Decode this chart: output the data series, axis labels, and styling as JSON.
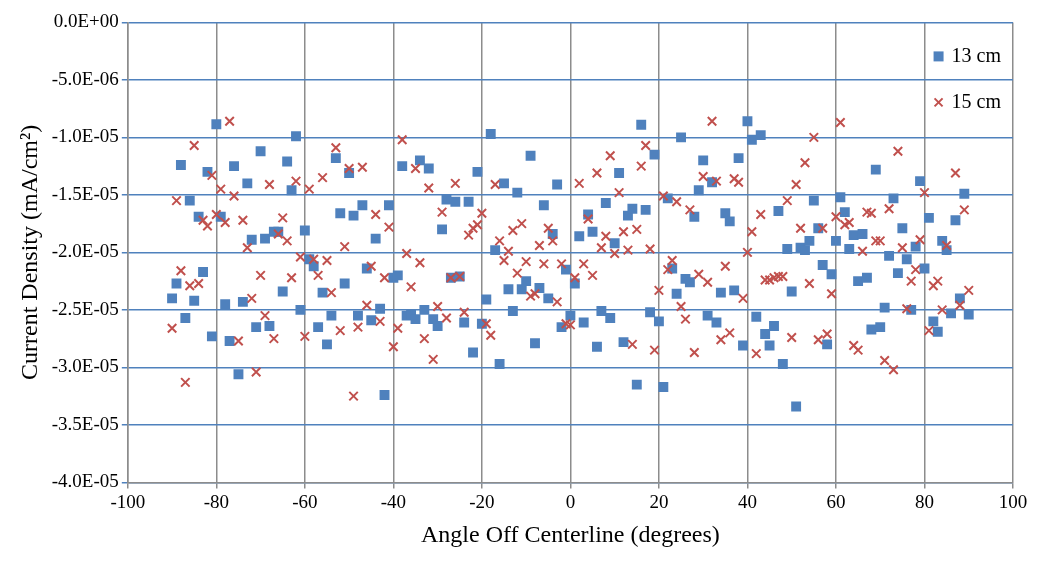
{
  "chart_data": {
    "type": "scatter",
    "xlabel": "Angle Off Centerline (degrees)",
    "ylabel": "Current Density (mA/cm²)",
    "xlim": [
      -100,
      100
    ],
    "xticks": [
      -100,
      -80,
      -60,
      -40,
      -20,
      0,
      20,
      40,
      60,
      80,
      100
    ],
    "ylim": [
      -4e-05,
      0
    ],
    "yticks": [
      {
        "value": 0,
        "label": "0.0E+00"
      },
      {
        "value": -5e-06,
        "label": "-5.0E-06"
      },
      {
        "value": -1e-05,
        "label": "-1.0E-05"
      },
      {
        "value": -1.5e-05,
        "label": "-1.5E-05"
      },
      {
        "value": -2e-05,
        "label": "-2.0E-05"
      },
      {
        "value": -2.5e-05,
        "label": "-2.5E-05"
      },
      {
        "value": -3e-05,
        "label": "-3.0E-05"
      },
      {
        "value": -3.5e-05,
        "label": "-3.5E-05"
      },
      {
        "value": -4e-05,
        "label": "-4.0E-05"
      }
    ],
    "grid": true,
    "legend": "top right",
    "x": [
      -90,
      -89,
      -88,
      -87,
      -86,
      -85,
      -84,
      -83,
      -82,
      -81,
      -80,
      -79,
      -78,
      -77,
      -76,
      -75,
      -74,
      -73,
      -72,
      -71,
      -70,
      -69,
      -68,
      -67,
      -66,
      -65,
      -64,
      -63,
      -62,
      -61,
      -60,
      -59,
      -58,
      -57,
      -56,
      -55,
      -54,
      -53,
      -52,
      -51,
      -50,
      -49,
      -48,
      -47,
      -46,
      -45,
      -44,
      -43,
      -42,
      -41,
      -40,
      -39,
      -38,
      -37,
      -36,
      -35,
      -34,
      -33,
      -32,
      -31,
      -30,
      -29,
      -28,
      -27,
      -26,
      -25,
      -24,
      -23,
      -22,
      -21,
      -20,
      -19,
      -18,
      -17,
      -16,
      -15,
      -14,
      -13,
      -12,
      -11,
      -10,
      -9,
      -8,
      -7,
      -6,
      -5,
      -4,
      -3,
      -2,
      -1,
      0,
      1,
      2,
      3,
      4,
      5,
      6,
      7,
      8,
      9,
      10,
      11,
      12,
      13,
      14,
      15,
      16,
      17,
      18,
      19,
      20,
      21,
      22,
      23,
      24,
      25,
      26,
      27,
      28,
      29,
      30,
      31,
      32,
      33,
      34,
      35,
      36,
      37,
      38,
      39,
      40,
      41,
      42,
      43,
      44,
      45,
      46,
      47,
      48,
      49,
      50,
      51,
      52,
      53,
      54,
      55,
      56,
      57,
      58,
      59,
      60,
      61,
      62,
      63,
      64,
      65,
      66,
      67,
      68,
      69,
      70,
      71,
      72,
      73,
      74,
      75,
      76,
      77,
      78,
      79,
      80,
      81,
      82,
      83,
      84,
      85,
      86,
      87,
      88,
      89,
      90
    ],
    "series": [
      {
        "name": "13 cm",
        "color": "#4f81bd",
        "marker": "square",
        "values": [
          -2.4e-05,
          -2.27e-05,
          -1.24e-05,
          -2.57e-05,
          -1.55e-05,
          -2.42e-05,
          -1.69e-05,
          -2.17e-05,
          -1.3e-05,
          -2.73e-05,
          -8.85e-06,
          -1.69e-05,
          -2.45e-05,
          -2.77e-05,
          -1.25e-05,
          -3.06e-05,
          -2.43e-05,
          -1.4e-05,
          -1.89e-05,
          -2.65e-05,
          -1.12e-05,
          -1.88e-05,
          -2.64e-05,
          -1.82e-05,
          -1.82e-05,
          -2.34e-05,
          -1.21e-05,
          -1.46e-05,
          -9.9e-06,
          -2.5e-05,
          -1.81e-05,
          -2.06e-05,
          -2.12e-05,
          -2.65e-05,
          -2.35e-05,
          -2.8e-05,
          -2.55e-05,
          -1.18e-05,
          -1.66e-05,
          -2.27e-05,
          -1.31e-05,
          -1.68e-05,
          -2.55e-05,
          -1.59e-05,
          -2.14e-05,
          -2.59e-05,
          -1.88e-05,
          -2.49e-05,
          -3.24e-05,
          -1.59e-05,
          -2.22e-05,
          -2.2e-05,
          -1.25e-05,
          -2.55e-05,
          -2.54e-05,
          -2.58e-05,
          -1.2e-05,
          -2.5e-05,
          -1.27e-05,
          -2.58e-05,
          -2.64e-05,
          -1.8e-05,
          -1.54e-05,
          -2.22e-05,
          -1.56e-05,
          -2.21e-05,
          -2.61e-05,
          -1.56e-05,
          -2.87e-05,
          -1.3e-05,
          -2.62e-05,
          -2.41e-05,
          -9.7e-06,
          -1.98e-05,
          -2.97e-05,
          -1.4e-05,
          -2.32e-05,
          -2.51e-05,
          -1.48e-05,
          -2.32e-05,
          -2.25e-05,
          -1.16e-05,
          -2.79e-05,
          -2.31e-05,
          -1.59e-05,
          -2.4e-05,
          -1.84e-05,
          -1.41e-05,
          -2.65e-05,
          -2.15e-05,
          -2.55e-05,
          -2.27e-05,
          -1.86e-05,
          -2.61e-05,
          -1.67e-05,
          -1.82e-05,
          -2.82e-05,
          -2.51e-05,
          -1.57e-05,
          -2.57e-05,
          -1.92e-05,
          -1.31e-05,
          -2.78e-05,
          -1.68e-05,
          -1.62e-05,
          -3.15e-05,
          -8.9e-06,
          -1.63e-05,
          -2.52e-05,
          -1.15e-05,
          -2.6e-05,
          -3.17e-05,
          -1.53e-05,
          -2.14e-05,
          -2.36e-05,
          -1e-05,
          -2.23e-05,
          -2.26e-05,
          -1.69e-05,
          -1.46e-05,
          -1.2e-05,
          -2.55e-05,
          -1.39e-05,
          -2.61e-05,
          -2.35e-05,
          -1.66e-05,
          -1.73e-05,
          -2.33e-05,
          -1.18e-05,
          -2.81e-05,
          -8.6e-06,
          -1.02e-05,
          -2.56e-05,
          -9.8e-06,
          -2.71e-05,
          -2.81e-05,
          -2.64e-05,
          -1.64e-05,
          -2.97e-05,
          -1.97e-05,
          -2.34e-05,
          -3.34e-05,
          -1.96e-05,
          -1.98e-05,
          -1.9e-05,
          -1.55e-05,
          -1.79e-05,
          -2.11e-05,
          -2.8e-05,
          -2.19e-05,
          -1.9e-05,
          -1.52e-05,
          -1.65e-05,
          -1.97e-05,
          -1.85e-05,
          -2.25e-05,
          -1.84e-05,
          -2.22e-05,
          -2.67e-05,
          -1.28e-05,
          -2.65e-05,
          -2.48e-05,
          -2.03e-05,
          -1.53e-05,
          -2.18e-05,
          -1.79e-05,
          -2.06e-05,
          -2.5e-05,
          -1.95e-05,
          -1.38e-05,
          -2.14e-05,
          -1.7e-05,
          -2.6e-05,
          -2.69e-05,
          -1.9e-05,
          -1.98e-05,
          -2.53e-05,
          -1.72e-05,
          -2.4e-05,
          -1.49e-05,
          -2.54e-05
        ]
      },
      {
        "name": "15 cm",
        "color": "#c0504d",
        "marker": "cross",
        "values": [
          -2.66e-05,
          -1.55e-05,
          -2.16e-05,
          -3.13e-05,
          -2.29e-05,
          -1.07e-05,
          -2.27e-05,
          -1.72e-05,
          -1.77e-05,
          -1.33e-05,
          -1.67e-05,
          -1.45e-05,
          -1.74e-05,
          -8.6e-06,
          -1.51e-05,
          -2.77e-05,
          -1.72e-05,
          -1.96e-05,
          -2.4e-05,
          -3.04e-05,
          -2.2e-05,
          -2.55e-05,
          -1.41e-05,
          -2.75e-05,
          -1.84e-05,
          -1.7e-05,
          -1.9e-05,
          -2.22e-05,
          -1.38e-05,
          -2.04e-05,
          -2.73e-05,
          -1.45e-05,
          -2.06e-05,
          -2.2e-05,
          -1.35e-05,
          -2.07e-05,
          -2.35e-05,
          -1.09e-05,
          -2.68e-05,
          -1.95e-05,
          -1.27e-05,
          -3.25e-05,
          -2.65e-05,
          -1.26e-05,
          -2.46e-05,
          -2.12e-05,
          -1.67e-05,
          -2.6e-05,
          -2.22e-05,
          -1.78e-05,
          -2.82e-05,
          -2.66e-05,
          -1.02e-05,
          -2.01e-05,
          -2.3e-05,
          -1.27e-05,
          -2.09e-05,
          -2.75e-05,
          -1.44e-05,
          -2.93e-05,
          -2.47e-05,
          -1.65e-05,
          -2.57e-05,
          -2.22e-05,
          -1.4e-05,
          -2.21e-05,
          -2.52e-05,
          -1.85e-05,
          -1.79e-05,
          -1.76e-05,
          -1.66e-05,
          -2.62e-05,
          -2.72e-05,
          -1.41e-05,
          -1.9e-05,
          -2.07e-05,
          -1.99e-05,
          -1.81e-05,
          -2.18e-05,
          -1.75e-05,
          -2.08e-05,
          -2.38e-05,
          -2.36e-05,
          -1.94e-05,
          -2.1e-05,
          -1.79e-05,
          -1.9e-05,
          -2.43e-05,
          -2.1e-05,
          -2.62e-05,
          -2.63e-05,
          -2.22e-05,
          -1.4e-05,
          -2.1e-05,
          -1.71e-05,
          -2.2e-05,
          -1.31e-05,
          -1.96e-05,
          -1.86e-05,
          -1.16e-05,
          -2.01e-05,
          -1.48e-05,
          -1.82e-05,
          -1.98e-05,
          -2.8e-05,
          -1.8e-05,
          -1.25e-05,
          -1.07e-05,
          -1.97e-05,
          -2.85e-05,
          -2.33e-05,
          -1.51e-05,
          -2.15e-05,
          -2.07e-05,
          -1.56e-05,
          -2.47e-05,
          -2.58e-05,
          -1.63e-05,
          -2.87e-05,
          -2.19e-05,
          -1.34e-05,
          -2.26e-05,
          -8.6e-06,
          -1.38e-05,
          -2.76e-05,
          -2.12e-05,
          -2.7e-05,
          -1.36e-05,
          -1.39e-05,
          -2.4e-05,
          -2e-05,
          -1.82e-05,
          -2.88e-05,
          -1.67e-05,
          -2.24e-05,
          -2.24e-05,
          -2.22e-05,
          -2.21e-05,
          -2.21e-05,
          -1.55e-05,
          -2.74e-05,
          -1.41e-05,
          -1.79e-05,
          -1.22e-05,
          -2.27e-05,
          -1e-05,
          -2.76e-05,
          -1.79e-05,
          -2.71e-05,
          -2.36e-05,
          -1.69e-05,
          -8.7e-06,
          -1.76e-05,
          -1.74e-05,
          -2.81e-05,
          -2.85e-05,
          -1.99e-05,
          -1.65e-05,
          -1.66e-05,
          -1.9e-05,
          -1.9e-05,
          -2.94e-05,
          -1.62e-05,
          -3.02e-05,
          -1.12e-05,
          -1.96e-05,
          -2.49e-05,
          -2.25e-05,
          -2.15e-05,
          -1.89e-05,
          -1.48e-05,
          -2.68e-05,
          -2.29e-05,
          -2.25e-05,
          -2.5e-05,
          -1.94e-05,
          null,
          -1.31e-05,
          -2.46e-05,
          -1.63e-05,
          -2.33e-05
        ]
      }
    ]
  }
}
